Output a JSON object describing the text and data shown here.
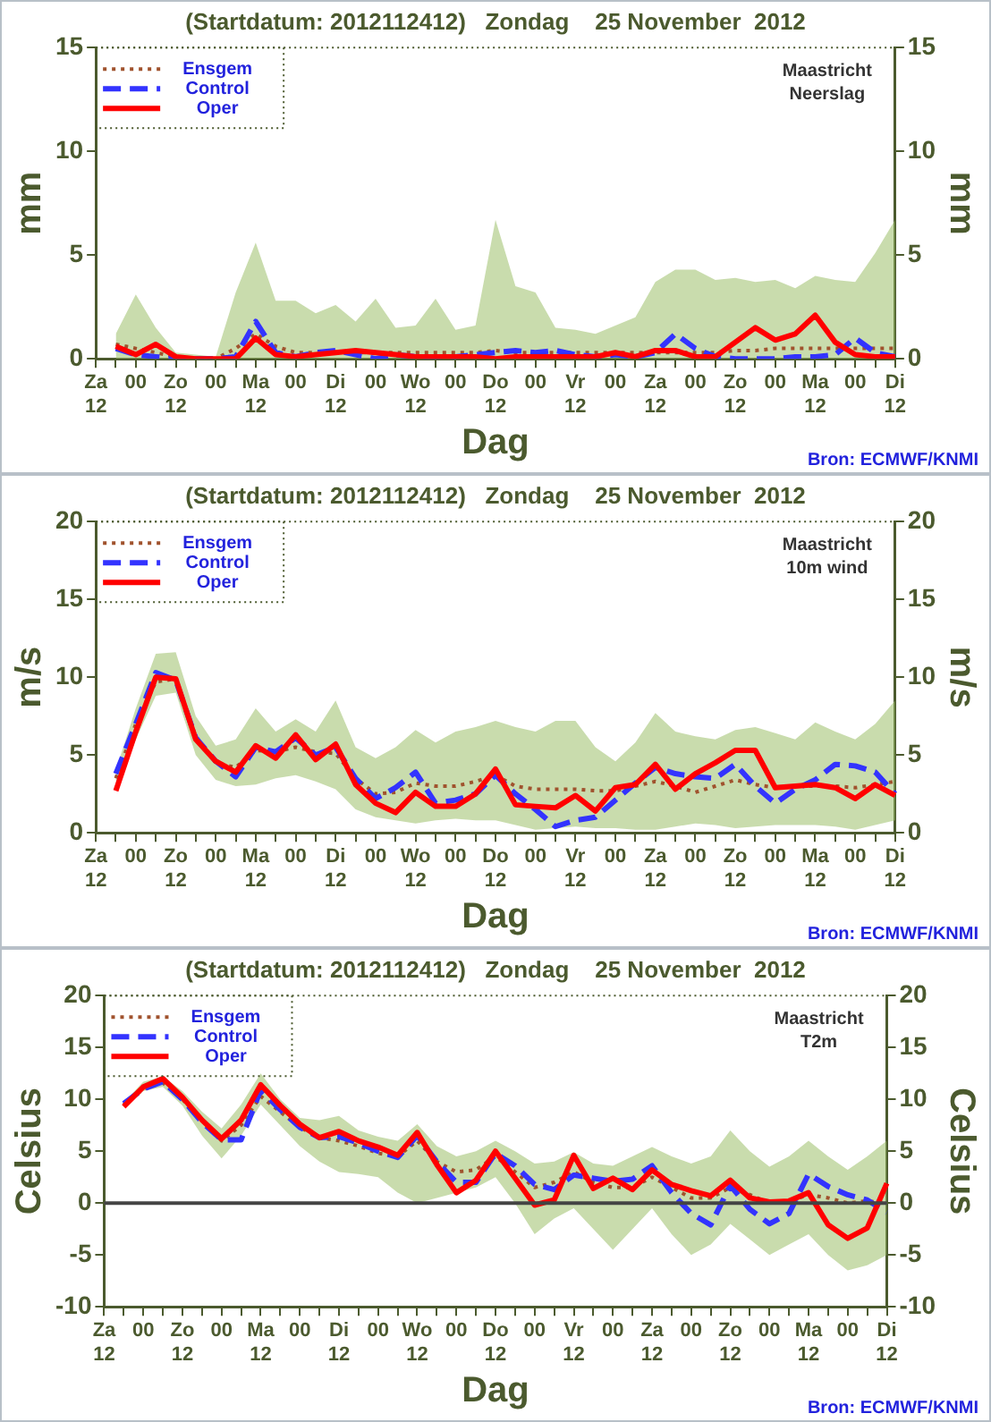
{
  "chart_data": [
    {
      "type": "line",
      "title": "(Startdatum: 2012112412)   Zondag    25 November  2012",
      "xlabel": "Dag",
      "ylabel": "mm",
      "y2label": "mm",
      "annotations": [
        "Maastricht",
        "Neerslag",
        "Bron: ECMWF/KNMI"
      ],
      "legend": "top left",
      "marker": "none",
      "grid": false,
      "categories": [
        "Za\n12",
        null,
        "00",
        null,
        "Zo\n12",
        null,
        "00",
        null,
        "Ma\n12",
        null,
        "00",
        null,
        "Di\n12",
        null,
        "00",
        null,
        "Wo\n12",
        null,
        "00",
        null,
        "Do\n12",
        null,
        "00",
        null,
        "Vr\n12",
        null,
        "00",
        null,
        "Za\n12",
        null,
        "00",
        null,
        "Zo\n12",
        null,
        "00",
        null,
        "Ma\n12",
        null,
        "00",
        null,
        "Di\n12"
      ],
      "ylim": [
        0,
        15
      ],
      "yticks": [
        0,
        5,
        10,
        15
      ],
      "y2lim": [
        0,
        15
      ],
      "y2ticks": [
        0,
        5,
        10,
        15
      ],
      "series": [
        {
          "name": "Ensgem",
          "color": "#a0522d",
          "line_style": "dotted",
          "values": [
            null,
            0.7,
            0.5,
            0.3,
            0.1,
            0,
            0,
            0.5,
            1.2,
            0.6,
            0.3,
            0.3,
            0.3,
            0.3,
            0.3,
            0.3,
            0.3,
            0.3,
            0.3,
            0.3,
            0.4,
            0.3,
            0.3,
            0.3,
            0.3,
            0.3,
            0.3,
            0.3,
            0.3,
            0.3,
            0.3,
            0.3,
            0.4,
            0.4,
            0.5,
            0.5,
            0.5,
            0.5,
            0.5,
            0.5,
            0.5
          ],
          "lower": [
            null,
            0,
            0,
            0,
            0,
            0,
            0,
            0,
            0,
            0,
            0,
            0,
            0,
            0,
            0,
            0,
            0,
            0,
            0,
            0,
            0,
            0,
            0,
            0,
            0,
            0,
            0,
            0,
            0,
            0,
            0,
            0,
            0,
            0,
            0,
            0,
            0,
            0,
            0,
            0,
            0
          ],
          "upper": [
            null,
            1.2,
            3.1,
            1.5,
            0.3,
            0.2,
            0.1,
            3.2,
            5.6,
            2.8,
            2.8,
            2.2,
            2.6,
            1.8,
            2.9,
            1.5,
            1.6,
            2.9,
            1.4,
            1.6,
            6.7,
            3.5,
            3.2,
            1.5,
            1.4,
            1.2,
            1.6,
            2.0,
            3.7,
            4.3,
            4.3,
            3.8,
            3.9,
            3.7,
            3.8,
            3.4,
            4.0,
            3.8,
            3.7,
            5.1,
            6.7
          ]
        },
        {
          "name": "Control",
          "color": "#3333ff",
          "line_style": "dashed",
          "values": [
            null,
            0.5,
            0.2,
            0.1,
            0,
            0,
            0,
            0.1,
            1.8,
            0.3,
            0.1,
            0.3,
            0.4,
            0.2,
            0,
            0.2,
            0.1,
            0.1,
            0.1,
            0.2,
            0.3,
            0.4,
            0.3,
            0.4,
            0.2,
            0.1,
            0.2,
            0.1,
            0.3,
            1.2,
            0.5,
            0.1,
            0,
            0,
            0,
            0.1,
            0.1,
            0.2,
            1.0,
            0.3,
            0.1
          ]
        },
        {
          "name": "Oper",
          "color": "#ff0000",
          "line_style": "solid",
          "values": [
            null,
            0.6,
            0.2,
            0.7,
            0.1,
            0,
            0,
            0,
            1.0,
            0.2,
            0.1,
            0.2,
            0.3,
            0.4,
            0.3,
            0.2,
            0.1,
            0.1,
            0.1,
            0.1,
            0,
            0.1,
            0.1,
            0.1,
            0.1,
            0.1,
            0.3,
            0.1,
            0.4,
            0.4,
            0.1,
            0.1,
            0.8,
            1.5,
            0.9,
            1.2,
            2.1,
            0.8,
            0.2,
            0.1,
            0.1
          ]
        }
      ]
    },
    {
      "type": "line",
      "title": "(Startdatum: 2012112412)   Zondag    25 November  2012",
      "xlabel": "Dag",
      "ylabel": "m/s",
      "y2label": "m/s",
      "annotations": [
        "Maastricht",
        "10m wind",
        "Bron: ECMWF/KNMI"
      ],
      "legend": "top left",
      "marker": "none",
      "grid": false,
      "categories": [
        "Za\n12",
        null,
        "00",
        null,
        "Zo\n12",
        null,
        "00",
        null,
        "Ma\n12",
        null,
        "00",
        null,
        "Di\n12",
        null,
        "00",
        null,
        "Wo\n12",
        null,
        "00",
        null,
        "Do\n12",
        null,
        "00",
        null,
        "Vr\n12",
        null,
        "00",
        null,
        "Za\n12",
        null,
        "00",
        null,
        "Zo\n12",
        null,
        "00",
        null,
        "Ma\n12",
        null,
        "00",
        null,
        "Di\n12"
      ],
      "ylim": [
        0,
        20
      ],
      "yticks": [
        0,
        5,
        10,
        15,
        20
      ],
      "y2lim": [
        0,
        20
      ],
      "y2ticks": [
        0,
        5,
        10,
        15,
        20
      ],
      "series": [
        {
          "name": "Ensgem",
          "color": "#a0522d",
          "line_style": "dotted",
          "values": [
            null,
            3.5,
            7,
            9.7,
            9.9,
            6.2,
            4.5,
            4.2,
            5.3,
            5.2,
            5.5,
            5.2,
            5.1,
            3.5,
            2.5,
            2.6,
            3.2,
            3.0,
            3.0,
            3.3,
            3.7,
            3.0,
            2.8,
            2.8,
            2.8,
            2.7,
            2.7,
            3.0,
            3.3,
            3.0,
            2.6,
            3.0,
            3.4,
            3.1,
            2.9,
            3.0,
            3.0,
            3.0,
            2.9,
            3.1,
            3.3
          ],
          "lower": [
            null,
            2.7,
            6,
            8.8,
            9,
            5,
            3.4,
            3.0,
            3.1,
            3.5,
            3.7,
            3.3,
            2.8,
            1.5,
            1.0,
            0.8,
            0.6,
            0.8,
            0.9,
            0.8,
            0.8,
            0.5,
            0.2,
            0.3,
            0.4,
            0.3,
            0.3,
            0.2,
            0.2,
            0.4,
            0.6,
            0.5,
            0.3,
            0.4,
            0.5,
            0.5,
            0.5,
            0.4,
            0.2,
            0.5,
            0.8
          ],
          "upper": [
            null,
            4.0,
            8,
            11.5,
            11.6,
            7.5,
            5.6,
            6.0,
            8.0,
            6.5,
            7.3,
            6.5,
            8.5,
            5.5,
            4.8,
            5.5,
            6.6,
            5.8,
            6.5,
            6.8,
            7.2,
            6.8,
            6.5,
            7.2,
            7.2,
            5.5,
            4.6,
            5.8,
            7.7,
            6.5,
            6.2,
            6.0,
            6.6,
            6.8,
            6.4,
            6.0,
            7.1,
            6.5,
            6.0,
            7.0,
            8.5
          ]
        },
        {
          "name": "Control",
          "color": "#3333ff",
          "line_style": "dashed",
          "values": [
            null,
            3.8,
            7,
            10.3,
            9.8,
            6.1,
            4.6,
            3.6,
            5.5,
            5.2,
            6.1,
            5.0,
            5.5,
            3.5,
            2.2,
            2.9,
            3.9,
            1.9,
            2.1,
            2.5,
            3.7,
            2.5,
            1.5,
            0.4,
            0.8,
            1.0,
            2.1,
            3.2,
            4.2,
            3.8,
            3.6,
            3.5,
            4.4,
            3.0,
            1.9,
            2.8,
            3.4,
            4.4,
            4.3,
            3.9,
            2.5
          ]
        },
        {
          "name": "Oper",
          "color": "#ff0000",
          "line_style": "solid",
          "values": [
            null,
            2.7,
            6.5,
            10.0,
            9.9,
            6.0,
            4.6,
            3.9,
            5.6,
            4.8,
            6.3,
            4.7,
            5.7,
            3.1,
            1.9,
            1.3,
            2.6,
            1.7,
            1.7,
            2.5,
            4.1,
            1.8,
            1.7,
            1.6,
            2.4,
            1.4,
            2.9,
            3.1,
            4.4,
            2.8,
            3.8,
            4.5,
            5.3,
            5.3,
            2.9,
            3.0,
            3.1,
            2.9,
            2.2,
            3.1,
            2.4
          ]
        }
      ]
    },
    {
      "type": "line",
      "title": "(Startdatum: 2012112412)   Zondag    25 November  2012",
      "xlabel": "Dag",
      "ylabel": "Celsius",
      "y2label": "Celsius",
      "annotations": [
        "Maastricht",
        "T2m",
        "Bron: ECMWF/KNMI"
      ],
      "legend": "top left",
      "marker": "none",
      "grid": false,
      "categories": [
        "Za\n12",
        null,
        "00",
        null,
        "Zo\n12",
        null,
        "00",
        null,
        "Ma\n12",
        null,
        "00",
        null,
        "Di\n12",
        null,
        "00",
        null,
        "Wo\n12",
        null,
        "00",
        null,
        "Do\n12",
        null,
        "00",
        null,
        "Vr\n12",
        null,
        "00",
        null,
        "Za\n12",
        null,
        "00",
        null,
        "Zo\n12",
        null,
        "00",
        null,
        "Ma\n12",
        null,
        "00",
        null,
        "Di\n12"
      ],
      "ylim": [
        -10,
        20
      ],
      "yticks": [
        -10,
        -5,
        0,
        5,
        10,
        15,
        20
      ],
      "y2lim": [
        -10,
        20
      ],
      "y2ticks": [
        -10,
        -5,
        0,
        5,
        10,
        15,
        20
      ],
      "ref_lines": [
        {
          "axis": "y",
          "value": 0,
          "color": "#444444"
        }
      ],
      "series": [
        {
          "name": "Ensgem",
          "color": "#a0522d",
          "line_style": "dotted",
          "values": [
            null,
            9.5,
            11,
            11.6,
            10,
            8.0,
            6,
            7.5,
            10.3,
            8.8,
            7.3,
            6.3,
            6.0,
            5.5,
            4.8,
            4.5,
            6.0,
            4.0,
            3.0,
            3.2,
            4.5,
            3.0,
            1.5,
            2.0,
            3.0,
            2.0,
            1.5,
            1.5,
            2.5,
            1.5,
            0.5,
            0.5,
            1.5,
            0.8,
            0,
            0.2,
            0.8,
            0.5,
            0,
            0.2,
            0
          ],
          "lower": [
            null,
            9.3,
            10.8,
            11.2,
            9.4,
            6.5,
            4.3,
            6.5,
            9.5,
            7.5,
            5.5,
            4.0,
            3.0,
            2.8,
            2.5,
            1.0,
            0,
            0.5,
            1.0,
            1.5,
            2.5,
            0,
            -3.0,
            -1.5,
            -0.5,
            -2.5,
            -4.5,
            -2.5,
            -0.5,
            -3.0,
            -5.0,
            -4.0,
            -2,
            -3.5,
            -5,
            -4,
            -3,
            -5,
            -6.5,
            -6,
            -5
          ],
          "upper": [
            null,
            9.7,
            11.7,
            12.2,
            10.8,
            8.8,
            7.2,
            9.5,
            12.5,
            10,
            8.2,
            8.0,
            8.4,
            7.0,
            6.4,
            6.0,
            7.6,
            5.5,
            4.5,
            5.0,
            6.0,
            5.0,
            3.8,
            4.0,
            4.9,
            3.8,
            3.6,
            4.5,
            5.4,
            4.5,
            3.8,
            4.5,
            7.0,
            5.0,
            3.5,
            4.5,
            6.0,
            4.5,
            3.2,
            4.5,
            6.0
          ]
        },
        {
          "name": "Control",
          "color": "#3333ff",
          "line_style": "dashed",
          "values": [
            null,
            9.6,
            11,
            11.7,
            10,
            7.8,
            6.1,
            6.1,
            10.9,
            9.0,
            7.3,
            6.3,
            6.4,
            5.8,
            5.0,
            4.4,
            6.5,
            4.0,
            2.0,
            2.0,
            4.8,
            3.6,
            1.8,
            1.3,
            2.7,
            2.4,
            2.1,
            2.3,
            3.6,
            1.0,
            -1.0,
            -2.1,
            1.7,
            -0.6,
            -2.0,
            -1.0,
            2.8,
            1.6,
            0.8,
            0.3,
            -0.9
          ]
        },
        {
          "name": "Oper",
          "color": "#ff0000",
          "line_style": "solid",
          "values": [
            null,
            9.3,
            11.2,
            12.0,
            10.2,
            8.0,
            6.2,
            8.0,
            11.4,
            9.4,
            7.6,
            6.3,
            6.9,
            6.0,
            5.4,
            4.6,
            6.8,
            3.7,
            1.0,
            2.2,
            5.0,
            2.4,
            -0.2,
            0.3,
            4.6,
            1.4,
            2.4,
            1.3,
            3.2,
            1.8,
            1.2,
            0.7,
            2.2,
            0.5,
            0.1,
            0.2,
            1.0,
            -2.1,
            -3.4,
            -2.4,
            1.9
          ]
        }
      ]
    }
  ]
}
